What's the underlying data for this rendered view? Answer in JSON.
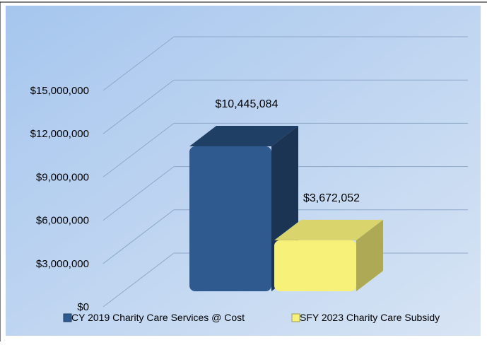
{
  "chart_data": {
    "type": "bar",
    "title": "",
    "xlabel": "",
    "ylabel": "",
    "three_d": true,
    "ylim": [
      0,
      15000000
    ],
    "yticks": [
      0,
      3000000,
      6000000,
      9000000,
      12000000,
      15000000
    ],
    "ytick_labels": [
      "$0",
      "$3,000,000",
      "$6,000,000",
      "$9,000,000",
      "$12,000,000",
      "$15,000,000"
    ],
    "grid": true,
    "legend_position": "bottom",
    "series": [
      {
        "name": "CY 2019 Charity Care Services @ Cost",
        "value": 10445084,
        "label": "$10,445,084",
        "color": "#2e5a90"
      },
      {
        "name": "SFY 2023 Charity Care Subsidy",
        "value": 3672052,
        "label": "$3,672,052",
        "color": "#f7f17a"
      }
    ]
  }
}
